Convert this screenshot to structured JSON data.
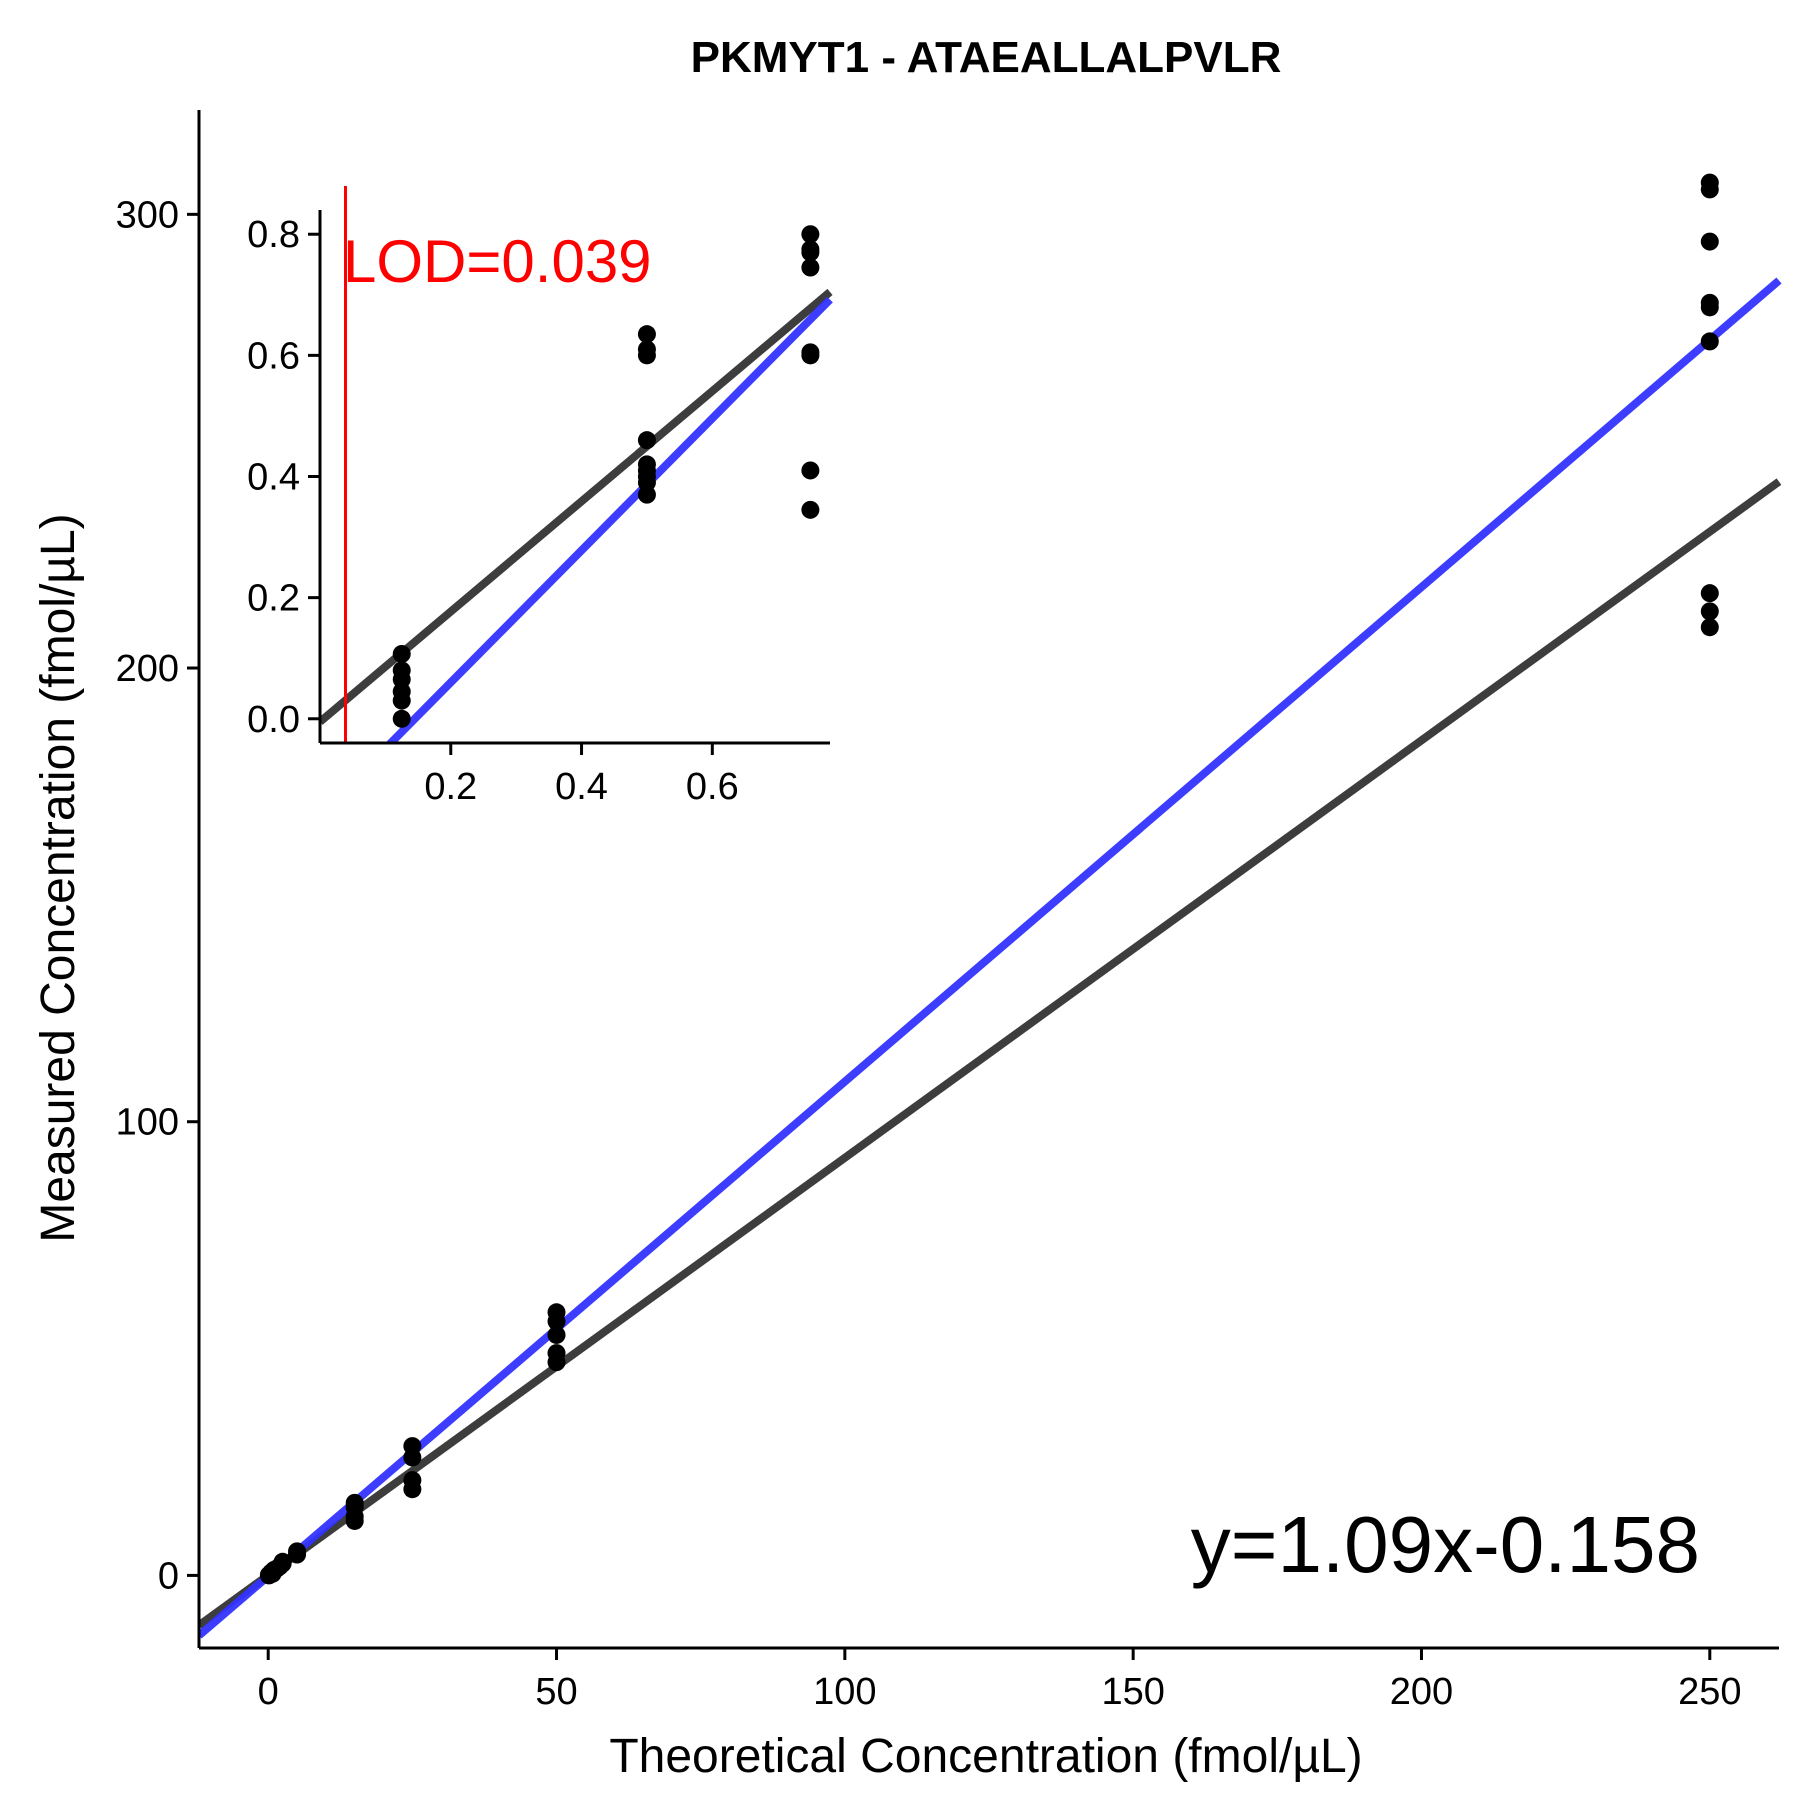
{
  "chart_data": [
    {
      "type": "scatter",
      "title": "PKMYT1 - ATAEALLALPVLR",
      "xlabel": "Theoretical Concentration (fmol/µL)",
      "ylabel": "Measured Concentration (fmol/µL)",
      "xlim": [
        -12,
        262
      ],
      "ylim": [
        -16,
        323
      ],
      "xticks": [
        0,
        50,
        100,
        150,
        200,
        250
      ],
      "yticks": [
        0,
        100,
        200,
        300
      ],
      "grid": false,
      "annotations": [
        {
          "text": "y=1.09x-0.158",
          "position": "bottom-right"
        }
      ],
      "lines": [
        {
          "name": "",
          "color": "#3333ff",
          "slope": 1.09,
          "intercept": -0.158
        },
        {
          "name": "",
          "color": "#333333",
          "slope": 0.92,
          "intercept": 0.05
        }
      ],
      "points": [
        {
          "x": 0.125,
          "y": 0.0
        },
        {
          "x": 0.125,
          "y": 0.1
        },
        {
          "x": 0.5,
          "y": 0.4
        },
        {
          "x": 0.5,
          "y": 0.63
        },
        {
          "x": 0.75,
          "y": 0.35
        },
        {
          "x": 0.75,
          "y": 0.8
        },
        {
          "x": 1,
          "y": 0.95
        },
        {
          "x": 1,
          "y": 1.2
        },
        {
          "x": 1.5,
          "y": 1.5
        },
        {
          "x": 2,
          "y": 2.0
        },
        {
          "x": 2.5,
          "y": 2.6
        },
        {
          "x": 2.5,
          "y": 3.0
        },
        {
          "x": 5,
          "y": 4.6
        },
        {
          "x": 5,
          "y": 5.3
        },
        {
          "x": 15,
          "y": 12.0
        },
        {
          "x": 15,
          "y": 13.0
        },
        {
          "x": 15,
          "y": 15.0
        },
        {
          "x": 15,
          "y": 16.0
        },
        {
          "x": 25,
          "y": 19.0
        },
        {
          "x": 25,
          "y": 21.0
        },
        {
          "x": 25,
          "y": 26.0
        },
        {
          "x": 25,
          "y": 28.5
        },
        {
          "x": 50,
          "y": 47.0
        },
        {
          "x": 50,
          "y": 49.0
        },
        {
          "x": 50,
          "y": 53.0
        },
        {
          "x": 50,
          "y": 56.0
        },
        {
          "x": 50,
          "y": 58.0
        },
        {
          "x": 250,
          "y": 209.0
        },
        {
          "x": 250,
          "y": 212.5
        },
        {
          "x": 250,
          "y": 216.5
        },
        {
          "x": 250,
          "y": 272.0
        },
        {
          "x": 250,
          "y": 279.5
        },
        {
          "x": 250,
          "y": 280.5
        },
        {
          "x": 250,
          "y": 294.0
        },
        {
          "x": 250,
          "y": 305.5
        },
        {
          "x": 250,
          "y": 307.0
        }
      ]
    },
    {
      "type": "scatter",
      "title": "",
      "xlabel": "",
      "ylabel": "",
      "xlim": [
        0.0,
        0.78
      ],
      "ylim": [
        -0.04,
        0.84
      ],
      "xticks": [
        0.2,
        0.4,
        0.6
      ],
      "yticks": [
        0.0,
        0.2,
        0.4,
        0.6,
        0.8
      ],
      "grid": false,
      "annotations": [
        {
          "text": "LOD=0.039",
          "position": "top-left",
          "color": "#ff0000"
        }
      ],
      "vline": {
        "x": 0.039,
        "color": "#ff0000"
      },
      "lines": [
        {
          "name": "",
          "color": "#3333ff",
          "slope": 1.09,
          "intercept": -0.158
        },
        {
          "name": "",
          "color": "#333333",
          "slope": 0.91,
          "intercept": -0.005
        }
      ],
      "points": [
        {
          "x": 0.125,
          "y": 0.0
        },
        {
          "x": 0.125,
          "y": 0.03
        },
        {
          "x": 0.125,
          "y": 0.045
        },
        {
          "x": 0.125,
          "y": 0.065
        },
        {
          "x": 0.125,
          "y": 0.08
        },
        {
          "x": 0.125,
          "y": 0.107
        },
        {
          "x": 0.5,
          "y": 0.37
        },
        {
          "x": 0.5,
          "y": 0.39
        },
        {
          "x": 0.5,
          "y": 0.4
        },
        {
          "x": 0.5,
          "y": 0.41
        },
        {
          "x": 0.5,
          "y": 0.42
        },
        {
          "x": 0.5,
          "y": 0.46
        },
        {
          "x": 0.5,
          "y": 0.6
        },
        {
          "x": 0.5,
          "y": 0.61
        },
        {
          "x": 0.5,
          "y": 0.635
        },
        {
          "x": 0.75,
          "y": 0.345
        },
        {
          "x": 0.75,
          "y": 0.41
        },
        {
          "x": 0.75,
          "y": 0.6
        },
        {
          "x": 0.75,
          "y": 0.605
        },
        {
          "x": 0.75,
          "y": 0.745
        },
        {
          "x": 0.75,
          "y": 0.77
        },
        {
          "x": 0.75,
          "y": 0.775
        },
        {
          "x": 0.75,
          "y": 0.8
        }
      ]
    }
  ]
}
